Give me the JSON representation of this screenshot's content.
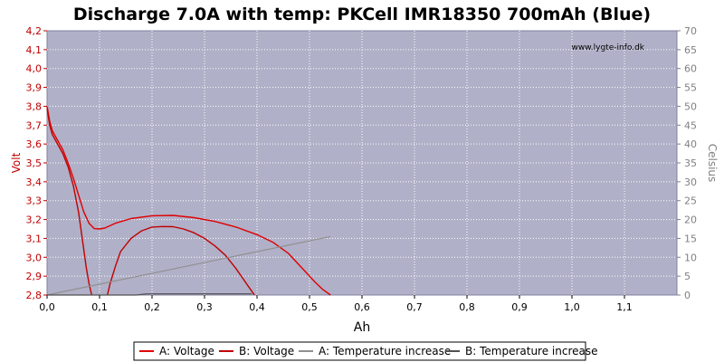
{
  "chart_data": {
    "type": "line",
    "title": "Discharge 7.0A with temp: PKCell IMR18350 700mAh (Blue)",
    "watermark": "www.lygte-info.dk",
    "xlabel": "Ah",
    "ylabel_left": "Volt",
    "ylabel_right": "Celsius",
    "xlim": [
      0,
      1.2
    ],
    "ylim_left": [
      2.8,
      4.2
    ],
    "ylim_right": [
      0,
      70
    ],
    "x_ticks": [
      "0,0",
      "0,1",
      "0,2",
      "0,3",
      "0,4",
      "0,5",
      "0,6",
      "0,7",
      "0,8",
      "0,9",
      "1,0",
      "1,1"
    ],
    "y_left_ticks": [
      "2,8",
      "2,9",
      "3,0",
      "3,1",
      "3,2",
      "3,3",
      "3,4",
      "3,5",
      "3,6",
      "3,7",
      "3,8",
      "3,9",
      "4,0",
      "4,1",
      "4,2"
    ],
    "y_right_ticks": [
      "0",
      "5",
      "10",
      "15",
      "20",
      "25",
      "30",
      "35",
      "40",
      "45",
      "50",
      "55",
      "60",
      "65",
      "70"
    ],
    "grid": true,
    "legend_position": "bottom",
    "series": [
      {
        "name": "A: Voltage",
        "axis": "left",
        "color": "#e00000",
        "points": [
          [
            0.0,
            3.8
          ],
          [
            0.005,
            3.72
          ],
          [
            0.01,
            3.67
          ],
          [
            0.02,
            3.62
          ],
          [
            0.03,
            3.57
          ],
          [
            0.04,
            3.5
          ],
          [
            0.05,
            3.42
          ],
          [
            0.06,
            3.33
          ],
          [
            0.07,
            3.24
          ],
          [
            0.08,
            3.18
          ],
          [
            0.09,
            3.152
          ],
          [
            0.1,
            3.15
          ],
          [
            0.11,
            3.155
          ],
          [
            0.13,
            3.18
          ],
          [
            0.16,
            3.205
          ],
          [
            0.2,
            3.22
          ],
          [
            0.24,
            3.222
          ],
          [
            0.28,
            3.21
          ],
          [
            0.32,
            3.19
          ],
          [
            0.36,
            3.16
          ],
          [
            0.4,
            3.12
          ],
          [
            0.43,
            3.08
          ],
          [
            0.46,
            3.02
          ],
          [
            0.49,
            2.93
          ],
          [
            0.51,
            2.87
          ],
          [
            0.525,
            2.83
          ],
          [
            0.54,
            2.8
          ]
        ]
      },
      {
        "name": "B: Voltage",
        "axis": "left",
        "color": "#c00000",
        "points": [
          [
            0.0,
            3.79
          ],
          [
            0.005,
            3.7
          ],
          [
            0.01,
            3.65
          ],
          [
            0.02,
            3.6
          ],
          [
            0.03,
            3.55
          ],
          [
            0.04,
            3.48
          ],
          [
            0.05,
            3.38
          ],
          [
            0.06,
            3.24
          ],
          [
            0.065,
            3.14
          ],
          [
            0.07,
            3.04
          ],
          [
            0.075,
            2.94
          ],
          [
            0.08,
            2.86
          ],
          [
            0.085,
            2.8
          ],
          [
            null,
            null
          ],
          [
            0.115,
            2.8
          ],
          [
            0.12,
            2.86
          ],
          [
            0.13,
            2.95
          ],
          [
            0.14,
            3.03
          ],
          [
            0.16,
            3.1
          ],
          [
            0.18,
            3.14
          ],
          [
            0.2,
            3.16
          ],
          [
            0.22,
            3.163
          ],
          [
            0.24,
            3.162
          ],
          [
            0.26,
            3.15
          ],
          [
            0.28,
            3.13
          ],
          [
            0.3,
            3.1
          ],
          [
            0.32,
            3.06
          ],
          [
            0.34,
            3.01
          ],
          [
            0.36,
            2.94
          ],
          [
            0.38,
            2.86
          ],
          [
            0.39,
            2.82
          ],
          [
            0.395,
            2.8
          ]
        ]
      },
      {
        "name": "A: Temperature increase",
        "axis": "right",
        "color": "#909090",
        "points": [
          [
            0.0,
            0
          ],
          [
            0.54,
            15.5
          ]
        ]
      },
      {
        "name": "B: Temperature increase",
        "axis": "right",
        "color": "#505050",
        "points": [
          [
            0.0,
            0
          ],
          [
            0.17,
            0
          ],
          [
            0.19,
            0.3
          ],
          [
            0.39,
            0.3
          ]
        ]
      }
    ]
  }
}
